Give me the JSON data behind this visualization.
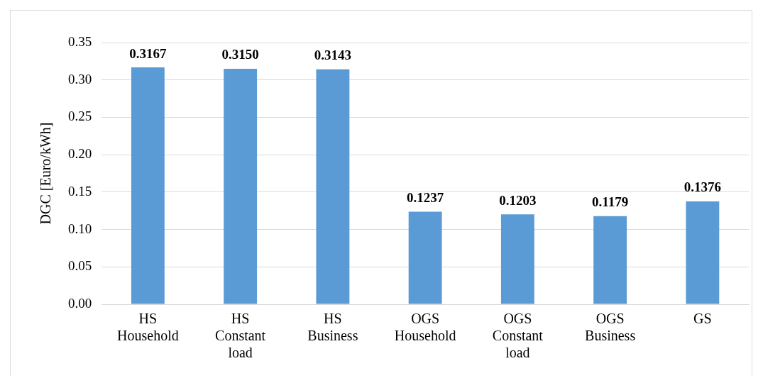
{
  "chart_data": {
    "type": "bar",
    "ylabel": "DGC [Euro/kWh]",
    "categories": [
      "HS Household",
      "HS Constant load",
      "HS Business",
      "OGS Household",
      "OGS Constant load",
      "OGS Business",
      "GS"
    ],
    "values": [
      0.3167,
      0.315,
      0.3143,
      0.1237,
      0.1203,
      0.1179,
      0.1376
    ],
    "color": "#5b9bd5",
    "value_labels": [
      "0.3167",
      "0.3150",
      "0.3143",
      "0.1237",
      "0.1203",
      "0.1179",
      "0.1376"
    ],
    "ylim": [
      0,
      0.35
    ],
    "yticks": [
      {
        "value": 0,
        "label": "0.00"
      },
      {
        "value": 0.05,
        "label": "0.05"
      },
      {
        "value": 0.1,
        "label": "0.10"
      },
      {
        "value": 0.15,
        "label": "0.15"
      },
      {
        "value": 0.2,
        "label": "0.20"
      },
      {
        "value": 0.25,
        "label": "0.25"
      },
      {
        "value": 0.3,
        "label": "0.30"
      },
      {
        "value": 0.35,
        "label": "0.35"
      }
    ],
    "grid": "y",
    "legend": false
  }
}
